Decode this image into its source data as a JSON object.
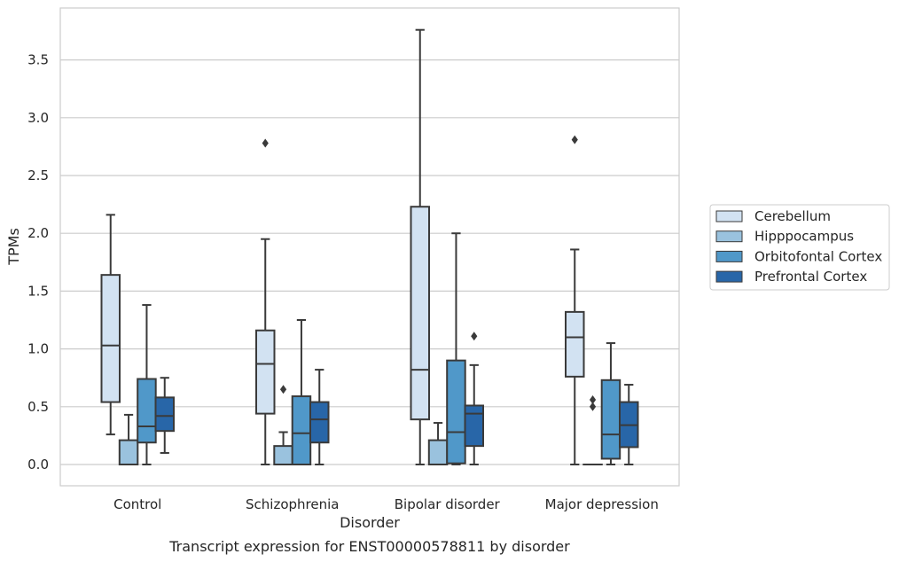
{
  "chart_data": {
    "type": "box",
    "title": "",
    "caption": "Transcript expression for ENST00000578811 by disorder",
    "xlabel": "Disorder",
    "ylabel": "TPMs",
    "ylim": [
      -0.18,
      3.9
    ],
    "yticks": [
      "0.0",
      "0.5",
      "1.0",
      "1.5",
      "2.0",
      "2.5",
      "3.0",
      "3.5"
    ],
    "grid": "horizontal",
    "legend_position": "right",
    "categories": [
      "Control",
      "Schizophrenia",
      "Bipolar disorder",
      "Major depression"
    ],
    "series": [
      {
        "name": "Cerebellum",
        "color": "#d2e2f2",
        "boxes": [
          {
            "whislo": 0.26,
            "q1": 0.54,
            "med": 1.03,
            "q3": 1.64,
            "whishi": 2.16,
            "fliers": []
          },
          {
            "whislo": 0.0,
            "q1": 0.44,
            "med": 0.87,
            "q3": 1.16,
            "whishi": 1.95,
            "fliers": [
              2.78
            ]
          },
          {
            "whislo": 0.0,
            "q1": 0.39,
            "med": 0.82,
            "q3": 2.23,
            "whishi": 3.76,
            "fliers": []
          },
          {
            "whislo": 0.0,
            "q1": 0.76,
            "med": 1.1,
            "q3": 1.32,
            "whishi": 1.86,
            "fliers": [
              2.81
            ]
          }
        ]
      },
      {
        "name": "Hipppocampus",
        "color": "#9ac2de",
        "boxes": [
          {
            "whislo": 0.0,
            "q1": 0.0,
            "med": 0.0,
            "q3": 0.21,
            "whishi": 0.43,
            "fliers": []
          },
          {
            "whislo": 0.0,
            "q1": 0.0,
            "med": 0.0,
            "q3": 0.16,
            "whishi": 0.28,
            "fliers": [
              0.65
            ]
          },
          {
            "whislo": 0.0,
            "q1": 0.0,
            "med": 0.0,
            "q3": 0.21,
            "whishi": 0.36,
            "fliers": []
          },
          {
            "whislo": 0.0,
            "q1": 0.0,
            "med": 0.0,
            "q3": 0.0,
            "whishi": 0.0,
            "fliers": [
              0.5,
              0.56
            ]
          }
        ]
      },
      {
        "name": "Orbitofontal Cortex",
        "color": "#5098c9",
        "boxes": [
          {
            "whislo": 0.0,
            "q1": 0.19,
            "med": 0.33,
            "q3": 0.74,
            "whishi": 1.38,
            "fliers": []
          },
          {
            "whislo": 0.0,
            "q1": 0.0,
            "med": 0.27,
            "q3": 0.59,
            "whishi": 1.25,
            "fliers": []
          },
          {
            "whislo": 0.0,
            "q1": 0.01,
            "med": 0.28,
            "q3": 0.9,
            "whishi": 2.0,
            "fliers": []
          },
          {
            "whislo": 0.0,
            "q1": 0.05,
            "med": 0.26,
            "q3": 0.73,
            "whishi": 1.05,
            "fliers": []
          }
        ]
      },
      {
        "name": "Prefrontal Cortex",
        "color": "#2866a8",
        "boxes": [
          {
            "whislo": 0.1,
            "q1": 0.29,
            "med": 0.42,
            "q3": 0.58,
            "whishi": 0.75,
            "fliers": []
          },
          {
            "whislo": 0.0,
            "q1": 0.19,
            "med": 0.39,
            "q3": 0.54,
            "whishi": 0.82,
            "fliers": []
          },
          {
            "whislo": 0.0,
            "q1": 0.16,
            "med": 0.44,
            "q3": 0.51,
            "whishi": 0.86,
            "fliers": [
              1.11
            ]
          },
          {
            "whislo": 0.0,
            "q1": 0.15,
            "med": 0.34,
            "q3": 0.54,
            "whishi": 0.69,
            "fliers": []
          }
        ]
      }
    ]
  }
}
